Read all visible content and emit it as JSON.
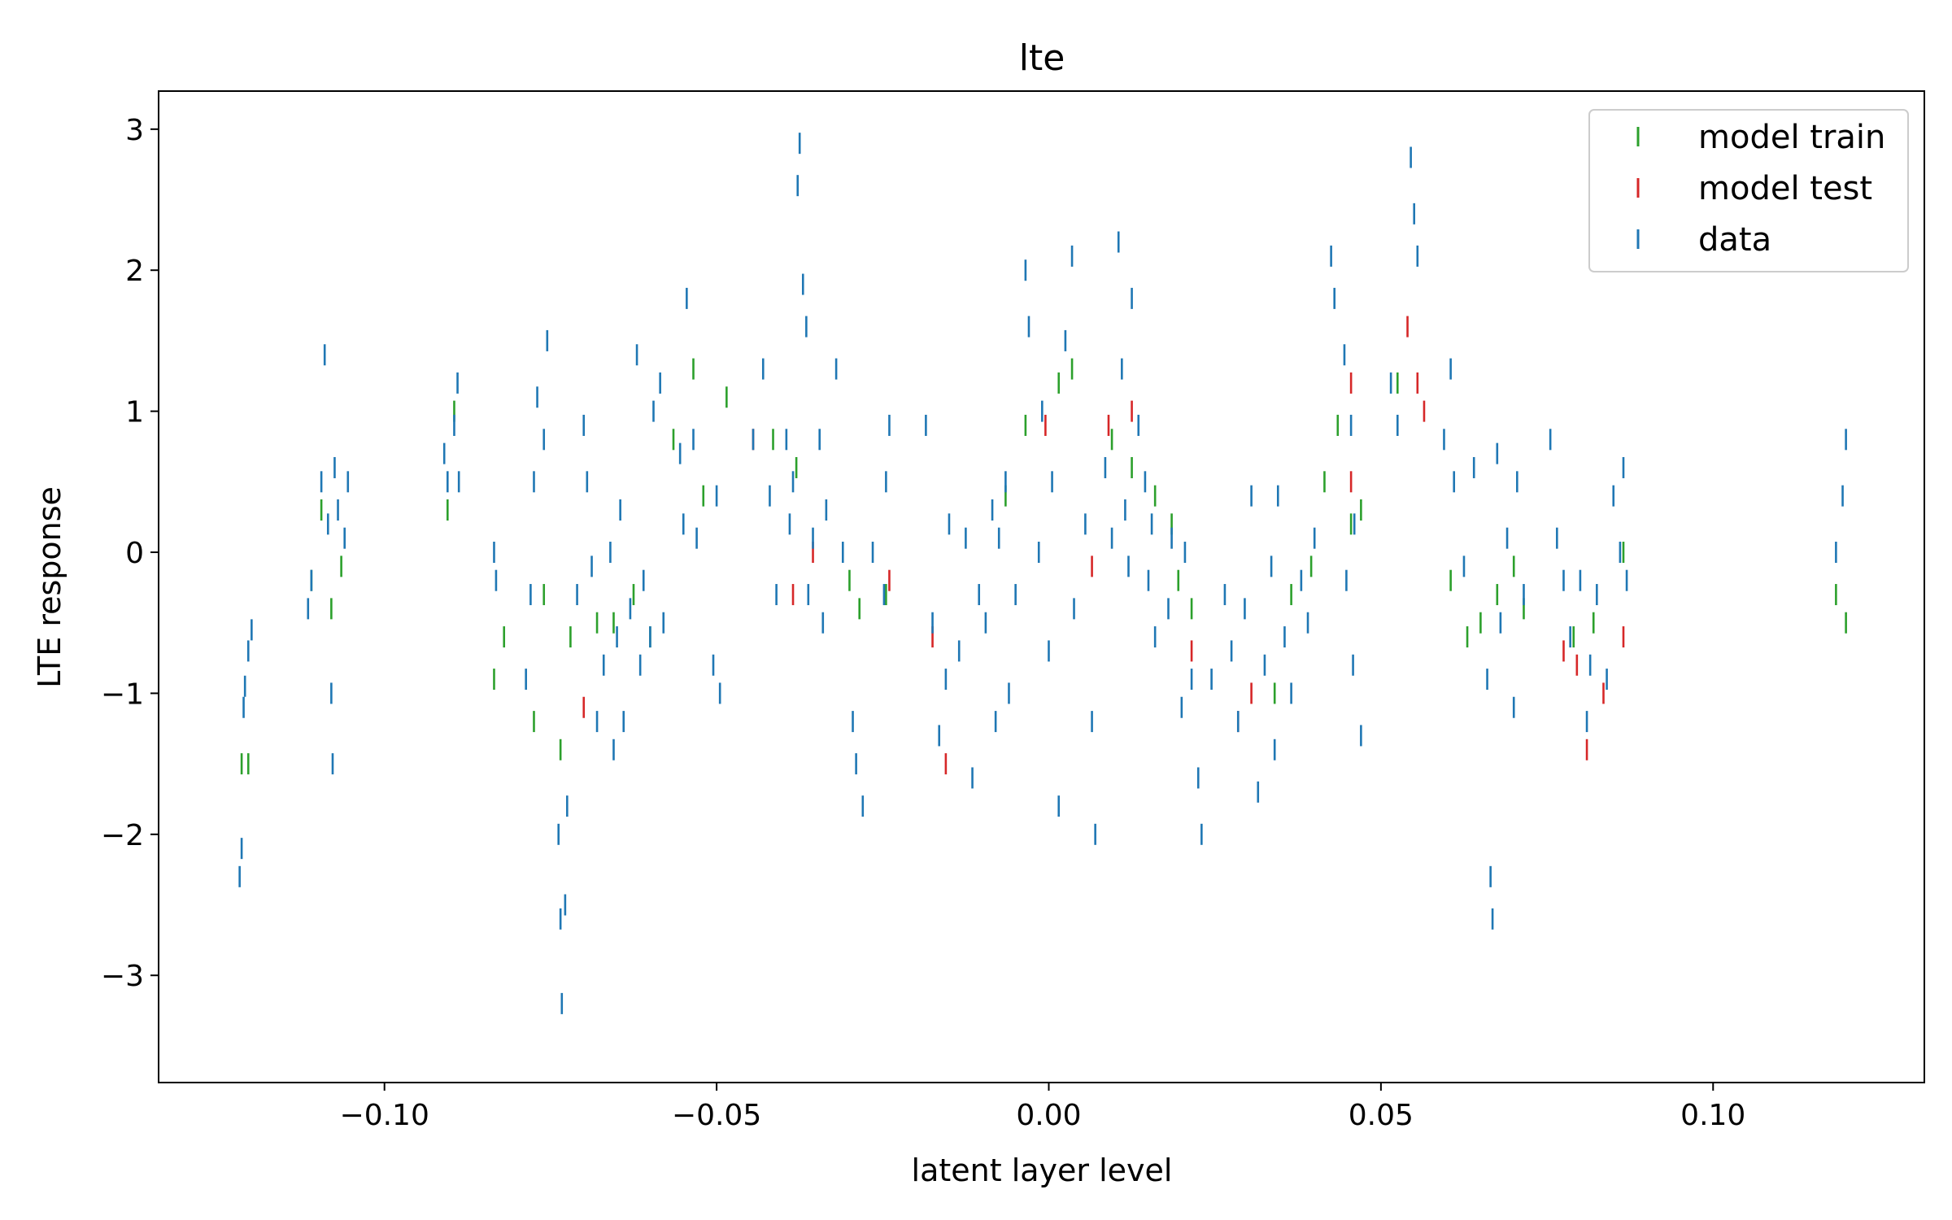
{
  "chart_data": {
    "type": "scatter",
    "title": "lte",
    "xlabel": "latent layer level",
    "ylabel": "LTE response",
    "xlim": [
      -0.134,
      0.1318
    ],
    "ylim": [
      -3.76,
      3.27
    ],
    "xticks": [
      -0.1,
      -0.05,
      0.0,
      0.05,
      0.1
    ],
    "xtick_labels": [
      "−0.10",
      "−0.05",
      "0.00",
      "0.05",
      "0.10"
    ],
    "yticks": [
      3,
      2,
      1,
      0,
      -1,
      -2,
      -3
    ],
    "ytick_labels": [
      "3",
      "2",
      "1",
      "0",
      "−1",
      "−2",
      "−3"
    ],
    "grid": false,
    "legend_position": "top-right",
    "marker": "|",
    "series": [
      {
        "name": "model train",
        "color": "#2ca02c",
        "points": [
          [
            -0.1215,
            -1.5
          ],
          [
            -0.1205,
            -1.5
          ],
          [
            -0.111,
            -0.2
          ],
          [
            -0.1095,
            0.3
          ],
          [
            -0.108,
            -0.4
          ],
          [
            -0.1065,
            -0.1
          ],
          [
            -0.0905,
            0.3
          ],
          [
            -0.0895,
            1.0
          ],
          [
            -0.0835,
            -0.9
          ],
          [
            -0.082,
            -0.6
          ],
          [
            -0.0775,
            -1.2
          ],
          [
            -0.076,
            -0.3
          ],
          [
            -0.0735,
            -1.4
          ],
          [
            -0.072,
            -0.6
          ],
          [
            -0.068,
            -0.5
          ],
          [
            -0.0655,
            -0.5
          ],
          [
            -0.0625,
            -0.3
          ],
          [
            -0.06,
            -0.6
          ],
          [
            -0.0565,
            0.8
          ],
          [
            -0.0535,
            1.3
          ],
          [
            -0.052,
            0.4
          ],
          [
            -0.0485,
            1.1
          ],
          [
            -0.0415,
            0.8
          ],
          [
            -0.038,
            0.6
          ],
          [
            -0.03,
            -0.2
          ],
          [
            -0.0285,
            -0.4
          ],
          [
            -0.0245,
            -0.3
          ],
          [
            -0.0065,
            0.4
          ],
          [
            -0.0035,
            0.9
          ],
          [
            0.0015,
            1.2
          ],
          [
            0.0035,
            1.3
          ],
          [
            0.0095,
            0.8
          ],
          [
            0.0125,
            0.6
          ],
          [
            0.016,
            0.4
          ],
          [
            0.0185,
            0.2
          ],
          [
            0.0195,
            -0.2
          ],
          [
            0.0215,
            -0.4
          ],
          [
            0.034,
            -1.0
          ],
          [
            0.0365,
            -0.3
          ],
          [
            0.0395,
            -0.1
          ],
          [
            0.0415,
            0.5
          ],
          [
            0.0435,
            0.9
          ],
          [
            0.0455,
            0.2
          ],
          [
            0.047,
            0.3
          ],
          [
            0.0525,
            1.2
          ],
          [
            0.0605,
            -0.2
          ],
          [
            0.063,
            -0.6
          ],
          [
            0.065,
            -0.5
          ],
          [
            0.0675,
            -0.3
          ],
          [
            0.07,
            -0.1
          ],
          [
            0.0715,
            -0.4
          ],
          [
            0.079,
            -0.6
          ],
          [
            0.082,
            -0.5
          ],
          [
            0.0865,
            0.0
          ],
          [
            0.1185,
            -0.3
          ],
          [
            0.12,
            -0.5
          ]
        ]
      },
      {
        "name": "model test",
        "color": "#d62728",
        "points": [
          [
            -0.07,
            -1.1
          ],
          [
            -0.0445,
            0.8
          ],
          [
            -0.0385,
            -0.3
          ],
          [
            -0.0355,
            0.0
          ],
          [
            -0.024,
            -0.2
          ],
          [
            -0.0175,
            -0.6
          ],
          [
            -0.0155,
            -1.5
          ],
          [
            -0.0005,
            0.9
          ],
          [
            0.0065,
            -0.1
          ],
          [
            0.009,
            0.9
          ],
          [
            0.0125,
            1.0
          ],
          [
            0.0215,
            -0.7
          ],
          [
            0.0285,
            -1.2
          ],
          [
            0.0305,
            -1.0
          ],
          [
            0.0455,
            0.5
          ],
          [
            0.0455,
            1.2
          ],
          [
            0.054,
            1.6
          ],
          [
            0.0555,
            1.2
          ],
          [
            0.0565,
            1.0
          ],
          [
            0.0775,
            -0.7
          ],
          [
            0.0795,
            -0.8
          ],
          [
            0.081,
            -1.4
          ],
          [
            0.0835,
            -1.0
          ],
          [
            0.0865,
            -0.6
          ]
        ]
      },
      {
        "name": "data",
        "color": "#1f77b4",
        "points": [
          [
            -0.1218,
            -2.3
          ],
          [
            -0.1215,
            -2.1
          ],
          [
            -0.1212,
            -1.1
          ],
          [
            -0.121,
            -0.95
          ],
          [
            -0.1205,
            -0.7
          ],
          [
            -0.12,
            -0.55
          ],
          [
            -0.1115,
            -0.4
          ],
          [
            -0.111,
            -0.2
          ],
          [
            -0.1095,
            0.5
          ],
          [
            -0.109,
            1.4
          ],
          [
            -0.1085,
            0.2
          ],
          [
            -0.108,
            -1.0
          ],
          [
            -0.1078,
            -1.5
          ],
          [
            -0.1075,
            0.6
          ],
          [
            -0.107,
            0.3
          ],
          [
            -0.106,
            0.1
          ],
          [
            -0.1055,
            0.5
          ],
          [
            -0.091,
            0.7
          ],
          [
            -0.0905,
            0.5
          ],
          [
            -0.0895,
            0.9
          ],
          [
            -0.089,
            1.2
          ],
          [
            -0.0888,
            0.5
          ],
          [
            -0.0835,
            0.0
          ],
          [
            -0.0832,
            -0.2
          ],
          [
            -0.0787,
            -0.9
          ],
          [
            -0.078,
            -0.3
          ],
          [
            -0.0775,
            0.5
          ],
          [
            -0.077,
            1.1
          ],
          [
            -0.0755,
            1.5
          ],
          [
            -0.076,
            0.8
          ],
          [
            -0.0738,
            -2.0
          ],
          [
            -0.0735,
            -2.6
          ],
          [
            -0.0733,
            -3.2
          ],
          [
            -0.0728,
            -2.5
          ],
          [
            -0.0725,
            -1.8
          ],
          [
            -0.071,
            -0.3
          ],
          [
            -0.07,
            0.9
          ],
          [
            -0.0695,
            0.5
          ],
          [
            -0.0688,
            -0.1
          ],
          [
            -0.068,
            -1.2
          ],
          [
            -0.067,
            -0.8
          ],
          [
            -0.066,
            0.0
          ],
          [
            -0.0655,
            -1.4
          ],
          [
            -0.065,
            -0.6
          ],
          [
            -0.0645,
            0.3
          ],
          [
            -0.064,
            -1.2
          ],
          [
            -0.063,
            -0.4
          ],
          [
            -0.062,
            1.4
          ],
          [
            -0.0615,
            -0.8
          ],
          [
            -0.061,
            -0.2
          ],
          [
            -0.06,
            -0.6
          ],
          [
            -0.0595,
            1.0
          ],
          [
            -0.0585,
            1.2
          ],
          [
            -0.058,
            -0.5
          ],
          [
            -0.0555,
            0.7
          ],
          [
            -0.055,
            0.2
          ],
          [
            -0.0545,
            1.8
          ],
          [
            -0.0535,
            0.8
          ],
          [
            -0.053,
            0.1
          ],
          [
            -0.0505,
            -0.8
          ],
          [
            -0.05,
            0.4
          ],
          [
            -0.0495,
            -1.0
          ],
          [
            -0.0445,
            0.8
          ],
          [
            -0.043,
            1.3
          ],
          [
            -0.042,
            0.4
          ],
          [
            -0.041,
            -0.3
          ],
          [
            -0.0395,
            0.8
          ],
          [
            -0.039,
            0.2
          ],
          [
            -0.0385,
            0.5
          ],
          [
            -0.0378,
            2.6
          ],
          [
            -0.0375,
            2.9
          ],
          [
            -0.037,
            1.9
          ],
          [
            -0.0365,
            1.6
          ],
          [
            -0.0362,
            -0.3
          ],
          [
            -0.0355,
            0.1
          ],
          [
            -0.0345,
            0.8
          ],
          [
            -0.034,
            -0.5
          ],
          [
            -0.0335,
            0.3
          ],
          [
            -0.032,
            1.3
          ],
          [
            -0.031,
            0.0
          ],
          [
            -0.0295,
            -1.2
          ],
          [
            -0.029,
            -1.5
          ],
          [
            -0.028,
            -1.8
          ],
          [
            -0.0265,
            0.0
          ],
          [
            -0.0245,
            0.5
          ],
          [
            -0.024,
            0.9
          ],
          [
            -0.0248,
            -0.3
          ],
          [
            -0.0185,
            0.9
          ],
          [
            -0.0175,
            -0.5
          ],
          [
            -0.0165,
            -1.3
          ],
          [
            -0.0155,
            -0.9
          ],
          [
            -0.015,
            0.2
          ],
          [
            -0.0135,
            -0.7
          ],
          [
            -0.0125,
            0.1
          ],
          [
            -0.0115,
            -1.6
          ],
          [
            -0.0105,
            -0.3
          ],
          [
            -0.0095,
            -0.5
          ],
          [
            -0.0085,
            0.3
          ],
          [
            -0.008,
            -1.2
          ],
          [
            -0.0075,
            0.1
          ],
          [
            -0.0065,
            0.5
          ],
          [
            -0.006,
            -1.0
          ],
          [
            -0.005,
            -0.3
          ],
          [
            -0.0035,
            2.0
          ],
          [
            -0.003,
            1.6
          ],
          [
            -0.0015,
            0.0
          ],
          [
            -0.001,
            1.0
          ],
          [
            0.0,
            -0.7
          ],
          [
            0.0005,
            0.5
          ],
          [
            0.0015,
            -1.8
          ],
          [
            0.0025,
            1.5
          ],
          [
            0.0035,
            2.1
          ],
          [
            0.0038,
            -0.4
          ],
          [
            0.0055,
            0.2
          ],
          [
            0.0065,
            -1.2
          ],
          [
            0.007,
            -2.0
          ],
          [
            0.0085,
            0.6
          ],
          [
            0.0095,
            0.1
          ],
          [
            0.0105,
            2.2
          ],
          [
            0.011,
            1.3
          ],
          [
            0.0115,
            0.3
          ],
          [
            0.012,
            -0.1
          ],
          [
            0.0125,
            1.8
          ],
          [
            0.0135,
            0.9
          ],
          [
            0.0145,
            0.5
          ],
          [
            0.015,
            -0.2
          ],
          [
            0.0155,
            0.2
          ],
          [
            0.016,
            -0.6
          ],
          [
            0.018,
            -0.4
          ],
          [
            0.0185,
            0.1
          ],
          [
            0.02,
            -1.1
          ],
          [
            0.0205,
            0.0
          ],
          [
            0.0215,
            -0.9
          ],
          [
            0.0225,
            -1.6
          ],
          [
            0.023,
            -2.0
          ],
          [
            0.0245,
            -0.9
          ],
          [
            0.0265,
            -0.3
          ],
          [
            0.0275,
            -0.7
          ],
          [
            0.0285,
            -1.2
          ],
          [
            0.0295,
            -0.4
          ],
          [
            0.0305,
            0.4
          ],
          [
            0.0315,
            -1.7
          ],
          [
            0.0325,
            -0.8
          ],
          [
            0.0335,
            -0.1
          ],
          [
            0.034,
            -1.4
          ],
          [
            0.0345,
            0.4
          ],
          [
            0.0355,
            -0.6
          ],
          [
            0.0365,
            -1.0
          ],
          [
            0.038,
            -0.2
          ],
          [
            0.039,
            -0.5
          ],
          [
            0.04,
            0.1
          ],
          [
            0.0425,
            2.1
          ],
          [
            0.043,
            1.8
          ],
          [
            0.0445,
            1.4
          ],
          [
            0.0455,
            0.9
          ],
          [
            0.0448,
            -0.2
          ],
          [
            0.0458,
            -0.8
          ],
          [
            0.047,
            -1.3
          ],
          [
            0.046,
            0.2
          ],
          [
            0.0515,
            1.2
          ],
          [
            0.0525,
            0.9
          ],
          [
            0.0545,
            2.8
          ],
          [
            0.055,
            2.4
          ],
          [
            0.0555,
            2.1
          ],
          [
            0.0595,
            0.8
          ],
          [
            0.0605,
            1.3
          ],
          [
            0.061,
            0.5
          ],
          [
            0.0625,
            -0.1
          ],
          [
            0.064,
            0.6
          ],
          [
            0.066,
            -0.9
          ],
          [
            0.0665,
            -2.3
          ],
          [
            0.0668,
            -2.6
          ],
          [
            0.0675,
            0.7
          ],
          [
            0.068,
            -0.5
          ],
          [
            0.069,
            0.1
          ],
          [
            0.07,
            -1.1
          ],
          [
            0.0705,
            0.5
          ],
          [
            0.0715,
            -0.3
          ],
          [
            0.0755,
            0.8
          ],
          [
            0.0765,
            0.1
          ],
          [
            0.0775,
            -0.2
          ],
          [
            0.0785,
            -0.6
          ],
          [
            0.08,
            -0.2
          ],
          [
            0.081,
            -1.2
          ],
          [
            0.0815,
            -0.8
          ],
          [
            0.0825,
            -0.3
          ],
          [
            0.084,
            -0.9
          ],
          [
            0.085,
            0.4
          ],
          [
            0.086,
            0.0
          ],
          [
            0.0865,
            0.6
          ],
          [
            0.087,
            -0.2
          ],
          [
            0.1185,
            0.0
          ],
          [
            0.1195,
            0.4
          ],
          [
            0.12,
            0.8
          ]
        ]
      }
    ]
  }
}
